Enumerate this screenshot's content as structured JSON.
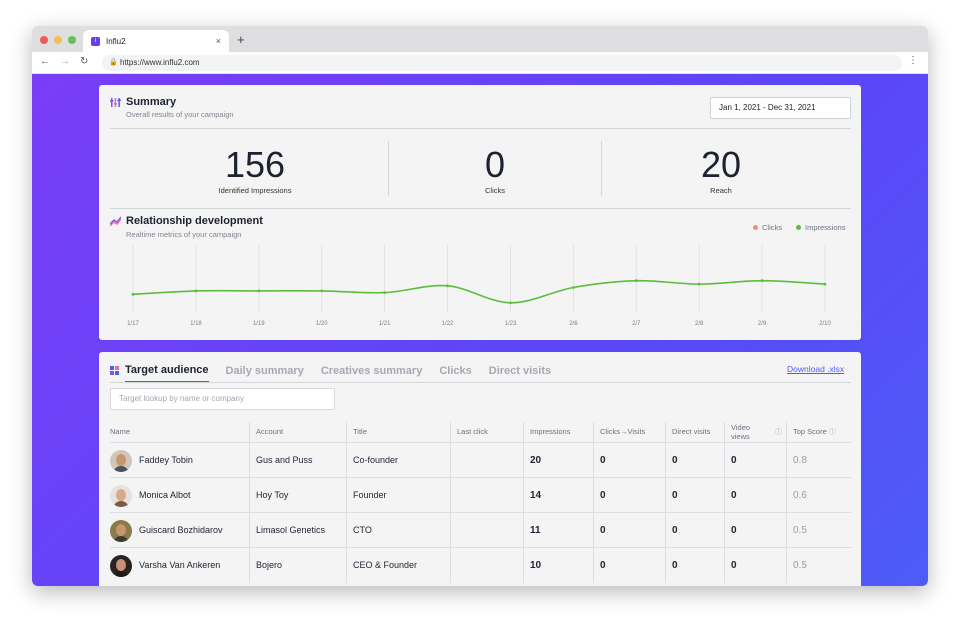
{
  "browser": {
    "tab_title": "Influ2",
    "tab_favicon_letter": "i",
    "url": "https://www.influ2.com",
    "new_tab_symbol": "+",
    "close_symbol": "×",
    "window_controls": [
      "#ee5c53",
      "#f4be4f",
      "#61c454"
    ]
  },
  "summary": {
    "title": "Summary",
    "subtitle": "Overall results of your campaign",
    "icon": "sliders-icon",
    "date_range": "Jan 1, 2021 - Dec 31, 2021",
    "stats": [
      {
        "value": "156",
        "label": "Identified Impressions"
      },
      {
        "value": "0",
        "label": "Clicks"
      },
      {
        "value": "20",
        "label": "Reach"
      }
    ]
  },
  "relationship": {
    "title": "Relationship development",
    "subtitle": "Realtime metrics of your campaign",
    "icon": "trend-icon",
    "legend": [
      {
        "name": "Clicks",
        "color": "#ef8f6b"
      },
      {
        "name": "Impressions",
        "color": "#5bbd3c"
      }
    ]
  },
  "chart_data": {
    "type": "line",
    "categories": [
      "1/17",
      "1/18",
      "1/19",
      "1/20",
      "1/21",
      "1/22",
      "1/23",
      "2/6",
      "2/7",
      "2/8",
      "2/9",
      "2/10"
    ],
    "series": [
      {
        "name": "Impressions",
        "color": "#5bbd3c",
        "values": [
          11,
          13,
          13,
          13,
          12,
          16,
          6,
          15,
          19,
          17,
          19,
          17
        ]
      },
      {
        "name": "Clicks",
        "color": "#ef8f6b",
        "values": [
          0,
          0,
          0,
          0,
          0,
          0,
          0,
          0,
          0,
          0,
          0,
          0
        ]
      }
    ],
    "ylim": [
      0,
      40
    ],
    "grid": true,
    "legend_position": "top-right"
  },
  "audience": {
    "tabs": [
      "Target audience",
      "Daily summary",
      "Creatives summary",
      "Clicks",
      "Direct visits"
    ],
    "active_tab": "Target audience",
    "download_label": "Download .xlsx",
    "search_placeholder": "Target lookup by name or company",
    "columns": [
      "Name",
      "Account",
      "Title",
      "Last click",
      "Impressions",
      "Clicks→Visits",
      "Direct visits",
      "Video views",
      "Top Score"
    ],
    "info_symbol": "ⓘ",
    "rows": [
      {
        "name": "Faddey Tobin",
        "account": "Gus and Puss",
        "title": "Co-founder",
        "last_click": "",
        "impressions": "20",
        "clicks_visits": "0",
        "direct_visits": "0",
        "video_views": "0",
        "top_score": "0.8",
        "avatar_bg": "#cfc6b8",
        "avatar_skin": "#c9956f",
        "avatar_shirt": "#4a4f5a"
      },
      {
        "name": "Monica Albot",
        "account": "Hoy Toy",
        "title": "Founder",
        "last_click": "",
        "impressions": "14",
        "clicks_visits": "0",
        "direct_visits": "0",
        "video_views": "0",
        "top_score": "0.6",
        "avatar_bg": "#e6e2dc",
        "avatar_skin": "#d8a98a",
        "avatar_shirt": "#7a5a45"
      },
      {
        "name": "Guiscard Bozhidarov",
        "account": "Limasol Genetics",
        "title": "CTO",
        "last_click": "",
        "impressions": "11",
        "clicks_visits": "0",
        "direct_visits": "0",
        "video_views": "0",
        "top_score": "0.5",
        "avatar_bg": "#8a7b4a",
        "avatar_skin": "#c8946a",
        "avatar_shirt": "#3d3a30"
      },
      {
        "name": "Varsha Van Ankeren",
        "account": "Bojero",
        "title": "CEO & Founder",
        "last_click": "",
        "impressions": "10",
        "clicks_visits": "0",
        "direct_visits": "0",
        "video_views": "0",
        "top_score": "0.5",
        "avatar_bg": "#2b2320",
        "avatar_skin": "#c99073",
        "avatar_shirt": "#1f1a18"
      }
    ]
  }
}
